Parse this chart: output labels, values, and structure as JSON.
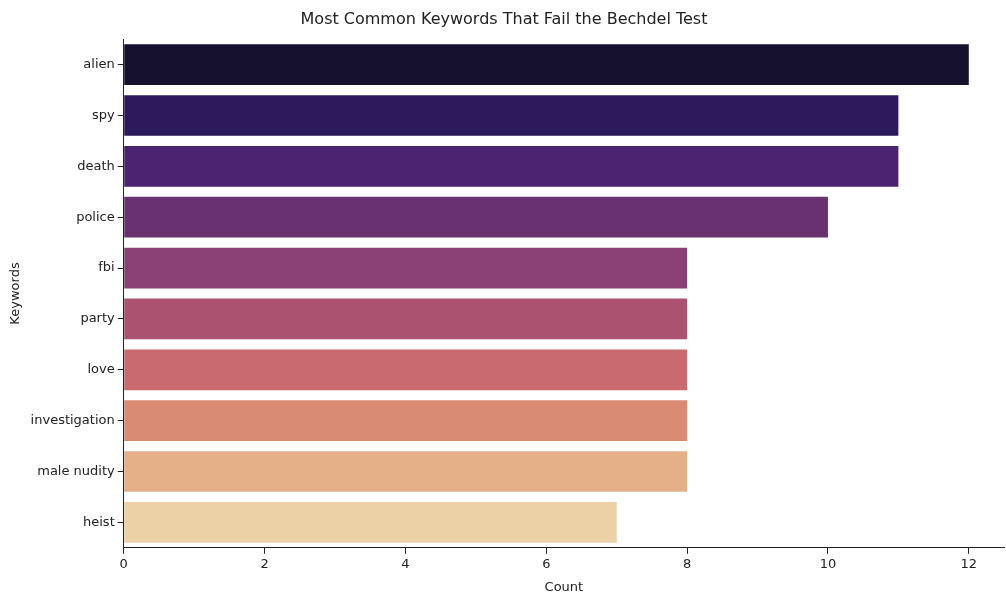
{
  "chart_data": {
    "type": "bar",
    "orientation": "horizontal",
    "title": "Most Common Keywords That Fail the Bechdel Test",
    "xlabel": "Count",
    "ylabel": "Keywords",
    "categories": [
      "alien",
      "spy",
      "death",
      "police",
      "fbi",
      "party",
      "love",
      "investigation",
      "male nudity",
      "heist"
    ],
    "values": [
      12,
      11,
      11,
      10,
      8,
      8,
      8,
      8,
      8,
      7
    ],
    "colors": [
      "#15112e",
      "#2d1a5c",
      "#4a2470",
      "#6a3170",
      "#8b4175",
      "#aa5270",
      "#c86a6e",
      "#da8b73",
      "#e5b088",
      "#edd1a6"
    ],
    "xlim": [
      0,
      12.5
    ],
    "xticks": [
      0,
      2,
      4,
      6,
      8,
      10,
      12
    ],
    "grid": false,
    "legend": false
  }
}
